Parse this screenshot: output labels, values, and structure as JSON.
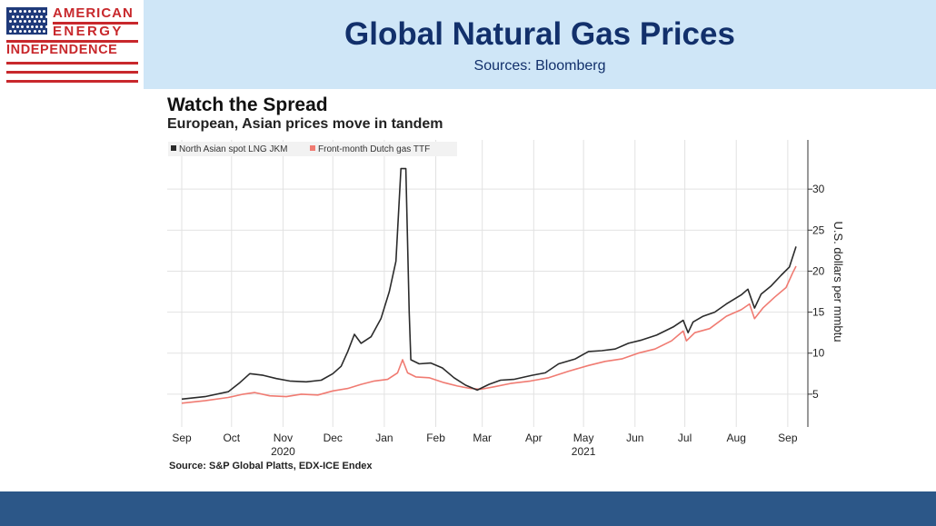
{
  "logo": {
    "line1": "AMERICAN",
    "line2": "ENERGY",
    "line3": "INDEPENDENCE"
  },
  "header": {
    "title": "Global Natural Gas Prices",
    "subtitle": "Sources: Bloomberg"
  },
  "source_note": "Source: S&P Global Platts, EDX-ICE Endex",
  "colors": {
    "header_bg": "#cfe6f7",
    "title": "#12306b",
    "logo_red": "#c8282c",
    "footer": "#2c5788",
    "series_jkm": "#2b2b2b",
    "series_ttf": "#f07b72"
  },
  "chart_data": {
    "type": "line",
    "title": "Watch the Spread",
    "subtitle": "European, Asian prices move in tandem",
    "ylabel": "U.S. dollars per mmbtu",
    "xlabel": "",
    "ylim": [
      1,
      36
    ],
    "yticks": [
      5,
      10,
      15,
      20,
      25,
      30
    ],
    "x_range": [
      "2020-09-01",
      "2021-09-06"
    ],
    "x_ticks": [
      {
        "date": "2020-09-01",
        "label": "Sep"
      },
      {
        "date": "2020-10-01",
        "label": "Oct"
      },
      {
        "date": "2020-11-01",
        "label": "Nov"
      },
      {
        "date": "2020-12-01",
        "label": "Dec"
      },
      {
        "date": "2021-01-01",
        "label": "Jan"
      },
      {
        "date": "2021-02-01",
        "label": "Feb"
      },
      {
        "date": "2021-03-01",
        "label": "Mar"
      },
      {
        "date": "2021-04-01",
        "label": "Apr"
      },
      {
        "date": "2021-05-01",
        "label": "May"
      },
      {
        "date": "2021-06-01",
        "label": "Jun"
      },
      {
        "date": "2021-07-01",
        "label": "Jul"
      },
      {
        "date": "2021-08-01",
        "label": "Aug"
      },
      {
        "date": "2021-09-01",
        "label": "Sep"
      }
    ],
    "year_labels": [
      {
        "date": "2020-11-01",
        "label": "2020"
      },
      {
        "date": "2021-05-01",
        "label": "2021"
      }
    ],
    "grid": true,
    "legend_position": "top-left",
    "series": [
      {
        "name": "North Asian spot LNG JKM",
        "color": "#2b2b2b",
        "points": [
          [
            "2020-09-01",
            4.4
          ],
          [
            "2020-09-15",
            4.7
          ],
          [
            "2020-09-29",
            5.3
          ],
          [
            "2020-10-06",
            6.4
          ],
          [
            "2020-10-12",
            7.5
          ],
          [
            "2020-10-20",
            7.3
          ],
          [
            "2020-10-28",
            6.9
          ],
          [
            "2020-11-05",
            6.6
          ],
          [
            "2020-11-15",
            6.5
          ],
          [
            "2020-11-24",
            6.7
          ],
          [
            "2020-12-01",
            7.5
          ],
          [
            "2020-12-06",
            8.4
          ],
          [
            "2020-12-10",
            10.2
          ],
          [
            "2020-12-14",
            12.3
          ],
          [
            "2020-12-18",
            11.2
          ],
          [
            "2020-12-24",
            12.0
          ],
          [
            "2020-12-30",
            14.2
          ],
          [
            "2021-01-04",
            17.5
          ],
          [
            "2021-01-08",
            21.2
          ],
          [
            "2021-01-11",
            32.5
          ],
          [
            "2021-01-14",
            32.5
          ],
          [
            "2021-01-16",
            15.0
          ],
          [
            "2021-01-17",
            9.2
          ],
          [
            "2021-01-22",
            8.7
          ],
          [
            "2021-01-29",
            8.8
          ],
          [
            "2021-02-05",
            8.2
          ],
          [
            "2021-02-12",
            7.0
          ],
          [
            "2021-02-19",
            6.1
          ],
          [
            "2021-02-26",
            5.5
          ],
          [
            "2021-03-05",
            6.2
          ],
          [
            "2021-03-12",
            6.7
          ],
          [
            "2021-03-20",
            6.8
          ],
          [
            "2021-03-31",
            7.3
          ],
          [
            "2021-04-08",
            7.6
          ],
          [
            "2021-04-16",
            8.7
          ],
          [
            "2021-04-26",
            9.3
          ],
          [
            "2021-05-04",
            10.2
          ],
          [
            "2021-05-12",
            10.3
          ],
          [
            "2021-05-20",
            10.5
          ],
          [
            "2021-05-28",
            11.2
          ],
          [
            "2021-06-05",
            11.6
          ],
          [
            "2021-06-14",
            12.2
          ],
          [
            "2021-06-24",
            13.2
          ],
          [
            "2021-06-30",
            14.0
          ],
          [
            "2021-07-03",
            12.5
          ],
          [
            "2021-07-06",
            13.8
          ],
          [
            "2021-07-12",
            14.5
          ],
          [
            "2021-07-19",
            15.0
          ],
          [
            "2021-07-26",
            16.0
          ],
          [
            "2021-08-04",
            17.1
          ],
          [
            "2021-08-08",
            17.8
          ],
          [
            "2021-08-12",
            15.5
          ],
          [
            "2021-08-16",
            17.2
          ],
          [
            "2021-08-22",
            18.2
          ],
          [
            "2021-08-28",
            19.5
          ],
          [
            "2021-09-02",
            20.5
          ],
          [
            "2021-09-06",
            23.0
          ]
        ]
      },
      {
        "name": "Front-month Dutch gas TTF",
        "color": "#f07b72",
        "points": [
          [
            "2020-09-01",
            3.9
          ],
          [
            "2020-09-15",
            4.2
          ],
          [
            "2020-09-29",
            4.6
          ],
          [
            "2020-10-08",
            5.0
          ],
          [
            "2020-10-15",
            5.2
          ],
          [
            "2020-10-24",
            4.8
          ],
          [
            "2020-11-03",
            4.7
          ],
          [
            "2020-11-12",
            5.0
          ],
          [
            "2020-11-22",
            4.9
          ],
          [
            "2020-12-01",
            5.4
          ],
          [
            "2020-12-10",
            5.7
          ],
          [
            "2020-12-18",
            6.2
          ],
          [
            "2020-12-26",
            6.6
          ],
          [
            "2021-01-03",
            6.8
          ],
          [
            "2021-01-09",
            7.6
          ],
          [
            "2021-01-12",
            9.2
          ],
          [
            "2021-01-15",
            7.6
          ],
          [
            "2021-01-20",
            7.1
          ],
          [
            "2021-01-28",
            7.0
          ],
          [
            "2021-02-06",
            6.4
          ],
          [
            "2021-02-14",
            6.0
          ],
          [
            "2021-02-22",
            5.7
          ],
          [
            "2021-02-28",
            5.6
          ],
          [
            "2021-03-08",
            5.9
          ],
          [
            "2021-03-18",
            6.3
          ],
          [
            "2021-03-30",
            6.6
          ],
          [
            "2021-04-10",
            7.0
          ],
          [
            "2021-04-22",
            7.8
          ],
          [
            "2021-05-04",
            8.5
          ],
          [
            "2021-05-14",
            9.0
          ],
          [
            "2021-05-24",
            9.3
          ],
          [
            "2021-06-03",
            10.0
          ],
          [
            "2021-06-13",
            10.5
          ],
          [
            "2021-06-23",
            11.5
          ],
          [
            "2021-06-30",
            12.7
          ],
          [
            "2021-07-02",
            11.5
          ],
          [
            "2021-07-07",
            12.5
          ],
          [
            "2021-07-16",
            13.0
          ],
          [
            "2021-07-26",
            14.5
          ],
          [
            "2021-08-04",
            15.3
          ],
          [
            "2021-08-09",
            16.0
          ],
          [
            "2021-08-12",
            14.2
          ],
          [
            "2021-08-17",
            15.5
          ],
          [
            "2021-08-24",
            16.8
          ],
          [
            "2021-08-31",
            18.0
          ],
          [
            "2021-09-04",
            19.8
          ],
          [
            "2021-09-06",
            20.6
          ]
        ]
      }
    ]
  }
}
